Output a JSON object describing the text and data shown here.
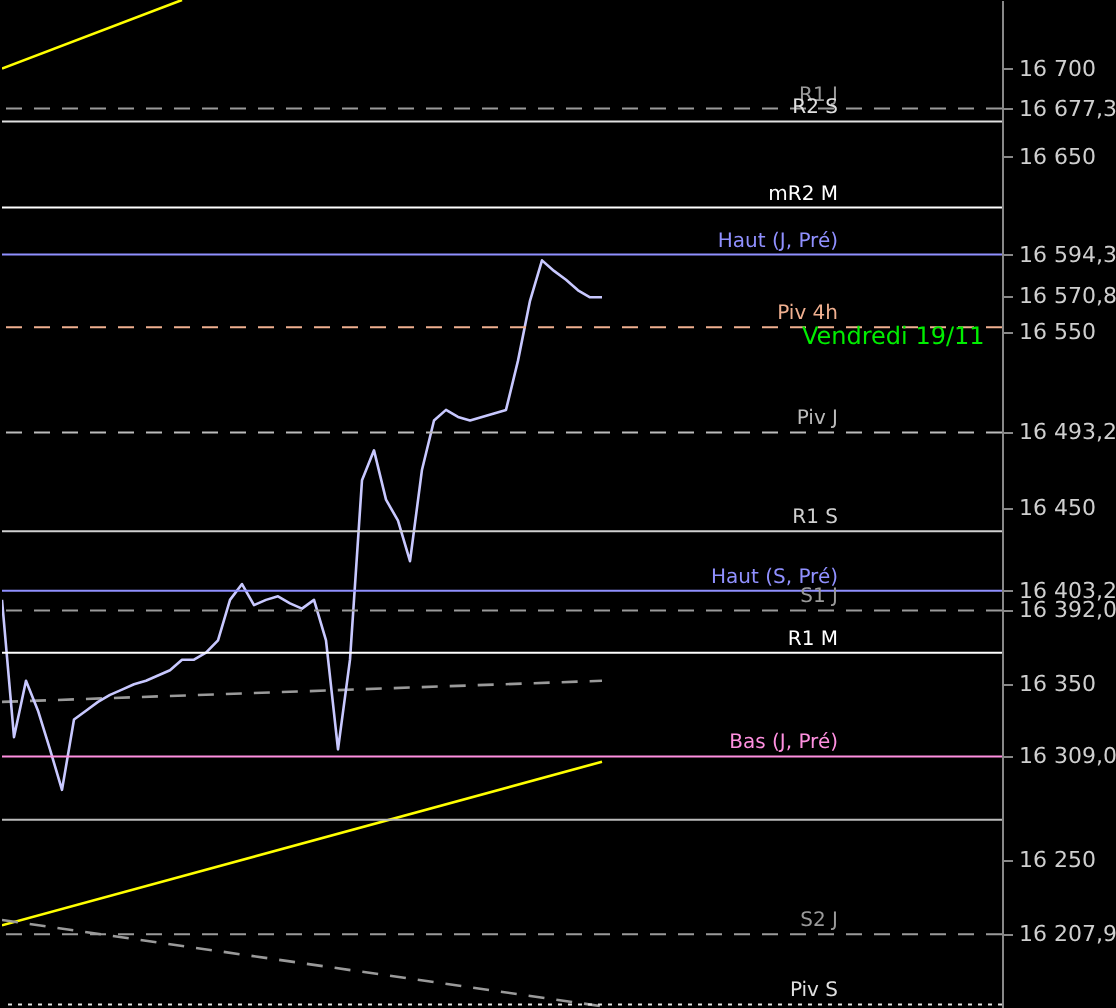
{
  "chart_data": {
    "type": "line",
    "ylim": [
      16166,
      16739
    ],
    "tick_labels": "y",
    "grid": false,
    "categories": [
      null,
      null,
      null,
      null,
      null,
      null,
      null,
      null,
      null,
      null,
      null,
      null,
      null,
      null,
      null,
      null,
      null,
      null,
      null,
      null,
      null,
      null,
      null,
      null,
      null,
      null,
      null,
      null,
      null,
      null,
      null,
      null,
      null,
      null,
      null,
      null,
      null,
      null,
      null,
      null,
      null,
      null,
      null,
      null,
      null,
      null,
      null,
      null,
      null,
      null,
      null
    ],
    "yticks": [
      {
        "value": 16250,
        "label": "16 250"
      },
      {
        "value": 16350,
        "label": "16 350"
      },
      {
        "value": 16450,
        "label": "16 450"
      },
      {
        "value": 16550,
        "label": "16 550"
      },
      {
        "value": 16650,
        "label": "16 650"
      },
      {
        "value": 16700,
        "label": "16 700"
      },
      {
        "value": 16677.3,
        "label": "16 677,3"
      },
      {
        "value": 16594.3,
        "label": "16 594,3"
      },
      {
        "value": 16570.8,
        "label": "16 570,8"
      },
      {
        "value": 16493.2,
        "label": "16 493,2"
      },
      {
        "value": 16403.2,
        "label": "16 403,2"
      },
      {
        "value": 16392.0,
        "label": "16 392,0"
      },
      {
        "value": 16309.0,
        "label": "16 309,0"
      },
      {
        "value": 16207.9,
        "label": "16 207,9"
      }
    ],
    "series": [
      {
        "color": "#c8c8ff",
        "values": [
          16398,
          16320,
          16352,
          16335,
          16313,
          16290,
          16330,
          16335,
          16340,
          16344,
          16347,
          16350,
          16352,
          16355,
          16358,
          16364,
          16364,
          16368,
          16375,
          16398,
          16407,
          16395,
          16398,
          16400,
          16396,
          16393,
          16398,
          16375,
          16313,
          16364,
          16466,
          16483,
          16455,
          16443,
          16420,
          16472,
          16500,
          16506,
          16502,
          16500,
          16502,
          16504,
          16506,
          16534,
          16568,
          16591,
          16585,
          16580,
          16574,
          16570,
          16570
        ]
      },
      {
        "color": "#ffff00",
        "line_style": "solid",
        "values": [
          16213,
          null,
          null,
          null,
          null,
          null,
          null,
          null,
          null,
          null,
          null,
          null,
          null,
          null,
          null,
          null,
          null,
          null,
          null,
          null,
          null,
          null,
          null,
          null,
          null,
          null,
          null,
          null,
          null,
          null,
          null,
          null,
          null,
          null,
          null,
          null,
          null,
          null,
          null,
          null,
          null,
          null,
          null,
          null,
          null,
          null,
          null,
          null,
          null,
          null,
          16306
        ]
      },
      {
        "color": "#ffff00",
        "line_style": "solid",
        "values": [
          16700,
          null,
          null,
          null,
          null,
          null,
          null,
          null,
          null,
          null,
          null,
          null,
          null,
          null,
          null,
          16739,
          null,
          null,
          null,
          null,
          null,
          null,
          null,
          null,
          null,
          null,
          null,
          null,
          null,
          null,
          null,
          null,
          null,
          null,
          null,
          null,
          null,
          null,
          null,
          null,
          null,
          null,
          null,
          null,
          null,
          null,
          null,
          null,
          null,
          null,
          null
        ]
      },
      {
        "color": "#9a9a9a",
        "line_style": "dashed",
        "values": [
          16340,
          null,
          null,
          null,
          null,
          null,
          null,
          null,
          null,
          null,
          null,
          null,
          null,
          null,
          null,
          null,
          null,
          null,
          null,
          null,
          null,
          null,
          null,
          null,
          null,
          null,
          null,
          null,
          null,
          null,
          null,
          null,
          null,
          null,
          null,
          null,
          null,
          null,
          null,
          null,
          null,
          null,
          null,
          null,
          null,
          null,
          null,
          null,
          null,
          null,
          16352
        ]
      },
      {
        "color": "#9a9a9a",
        "line_style": "dashed",
        "values": [
          16216,
          null,
          null,
          null,
          null,
          null,
          null,
          null,
          null,
          null,
          null,
          null,
          null,
          null,
          null,
          null,
          null,
          null,
          null,
          null,
          null,
          null,
          null,
          null,
          null,
          null,
          null,
          null,
          null,
          null,
          null,
          null,
          null,
          null,
          null,
          null,
          null,
          null,
          null,
          null,
          null,
          null,
          null,
          null,
          null,
          null,
          null,
          null,
          null,
          null,
          16167
        ]
      }
    ],
    "ref_lines": [
      {
        "axis": "y",
        "value": 16677.3,
        "label": "R1 J",
        "color": "#9a9a9a",
        "line_style": "dashed"
      },
      {
        "axis": "y",
        "value": 16670,
        "label": "R2 S",
        "color": "#e0e0e0",
        "line_style": "solid"
      },
      {
        "axis": "y",
        "value": 16621,
        "label": "mR2 M",
        "color": "#ffffff",
        "line_style": "solid"
      },
      {
        "axis": "y",
        "value": 16594.3,
        "label": "Haut (J, Pré)",
        "color": "#9090ff",
        "line_style": "solid"
      },
      {
        "axis": "y",
        "value": 16553,
        "label": "Piv 4h",
        "color": "#f0b090",
        "line_style": "dashed"
      },
      {
        "axis": "y",
        "value": 16493.2,
        "label": "Piv J",
        "color": "#bbbbbb",
        "line_style": "dashed"
      },
      {
        "axis": "y",
        "value": 16437,
        "label": "R1 S",
        "color": "#d0d0d0",
        "line_style": "solid"
      },
      {
        "axis": "y",
        "value": 16403.2,
        "label": "Haut (S, Pré)",
        "color": "#9090ff",
        "line_style": "solid"
      },
      {
        "axis": "y",
        "value": 16392.0,
        "label": "S1 J",
        "color": "#9a9a9a",
        "line_style": "dashed"
      },
      {
        "axis": "y",
        "value": 16368,
        "label": "R1 M",
        "color": "#ffffff",
        "line_style": "solid"
      },
      {
        "axis": "y",
        "value": 16309.0,
        "label": "Bas (J, Pré)",
        "color": "#ff90e0",
        "line_style": "solid"
      },
      {
        "axis": "y",
        "value": 16273,
        "label": null,
        "color": "#bbbbbb",
        "line_style": "solid"
      },
      {
        "axis": "y",
        "value": 16207.9,
        "label": "S2 J",
        "color": "#9a9a9a",
        "line_style": "dashed"
      },
      {
        "axis": "y",
        "value": 16168,
        "label": "Piv S",
        "color": "#e0e0e0",
        "line_style": "dotted"
      }
    ],
    "annotations": [
      "Vendredi 19/11"
    ]
  }
}
